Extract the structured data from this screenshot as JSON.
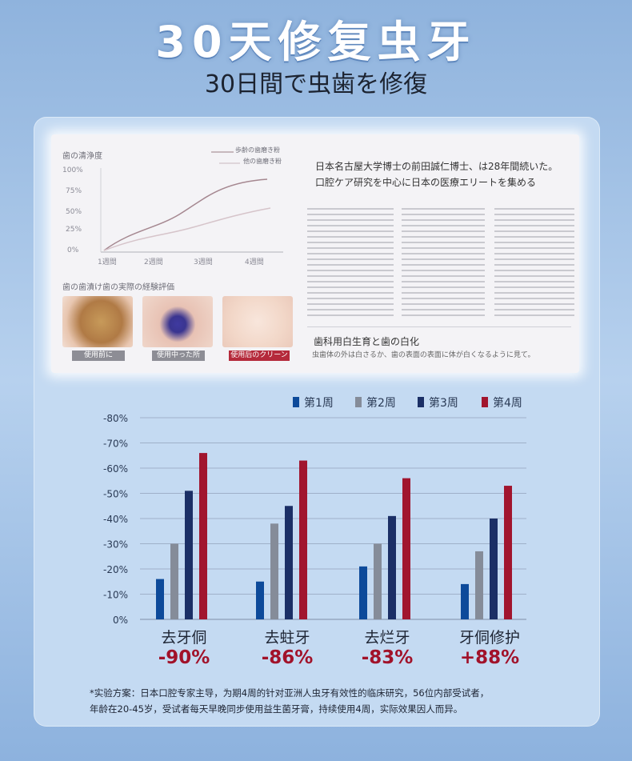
{
  "header": {
    "title": "30天修复虫牙",
    "subtitle": "30日間で虫歯を修復"
  },
  "paper": {
    "mini_chart_title": "歯の清浄度",
    "legend": [
      "歩齢の歯磨き粉",
      "他の歯磨き粉"
    ],
    "y_ticks": [
      "100%",
      "75%",
      "50%",
      "25%",
      "0%"
    ],
    "x_ticks": [
      "1週間",
      "2週間",
      "3週間",
      "4週間"
    ],
    "eval_title": "歯の歯漬け歯の実際の経験評価",
    "photo_labels": [
      "使用前に",
      "使用中った所",
      "使用后のクリーン"
    ],
    "heading_line1": "日本名古屋大学博士の前田誠仁博士、は28年間続いた。",
    "heading_line2": "口腔ケア研究を中心に日本の医療エリートを集める",
    "section_title": "歯科用白生育と歯の白化",
    "section_sub": "虫歯体の外は白さるか、歯の表面の表面に体が白くなるように見て。"
  },
  "chart_data": {
    "type": "bar",
    "categories": [
      "去牙侗",
      "去蛀牙",
      "去烂牙",
      "牙侗修护"
    ],
    "series": [
      {
        "name": "第1周",
        "color": "#0d4a9a",
        "values": [
          16,
          15,
          21,
          14
        ]
      },
      {
        "name": "第2周",
        "color": "#858c99",
        "values": [
          30,
          38,
          30,
          27
        ]
      },
      {
        "name": "第3周",
        "color": "#1b2f66",
        "values": [
          51,
          45,
          41,
          40
        ]
      },
      {
        "name": "第4周",
        "color": "#a1152e",
        "values": [
          66,
          63,
          56,
          53
        ]
      }
    ],
    "y_ticks": [
      "-80%",
      "-70%",
      "-60%",
      "-50%",
      "-40%",
      "-30%",
      "-20%",
      "-10%",
      "0%"
    ],
    "ylim": [
      0,
      80
    ],
    "grid": true,
    "legend_position": "top-right",
    "result_labels": [
      "-90%",
      "-86%",
      "-83%",
      "+88%"
    ]
  },
  "footnote": {
    "line1": "*实验方案：日本口腔专家主导，为期4周的针对亚洲人虫牙有效性的临床研究，56位内部受试者，",
    "line2": "年龄在20-45岁，受试者每天早晚同步使用益生菌牙膏，持续使用4周，实际效果因人而异。"
  }
}
